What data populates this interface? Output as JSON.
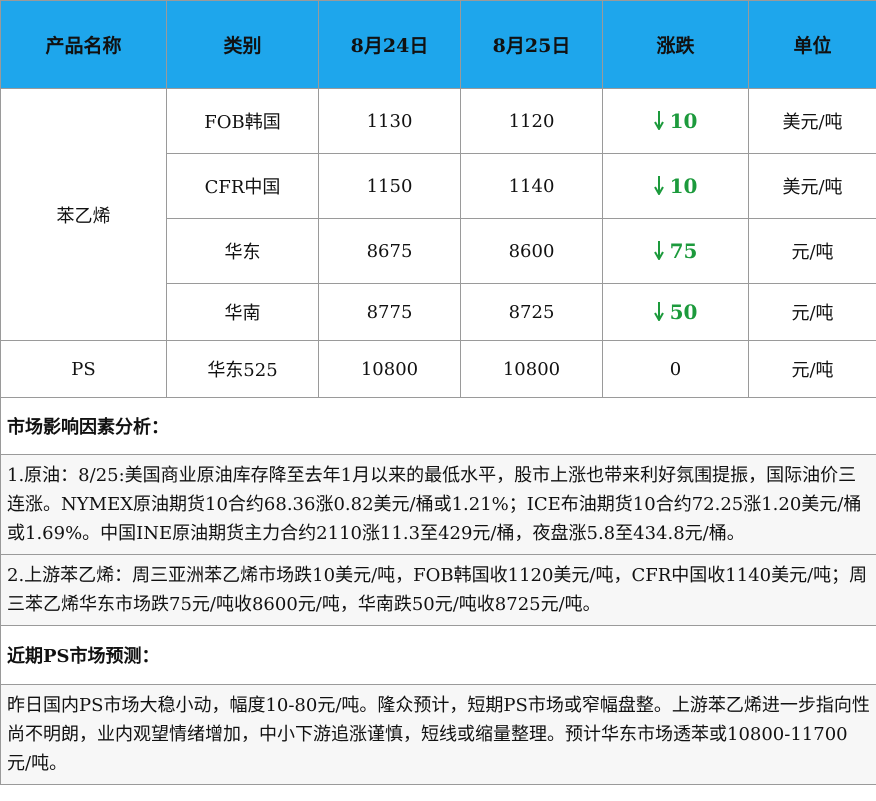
{
  "table": {
    "header": [
      "产品名称",
      "类别",
      "8月24日",
      "8月25日",
      "涨跌",
      "单位"
    ],
    "groups": [
      {
        "product": "苯乙烯",
        "rows": [
          [
            "FOB韩国",
            "1130",
            "1120",
            "10",
            "美元/吨"
          ],
          [
            "CFR中国",
            "1150",
            "1140",
            "10",
            "美元/吨"
          ],
          [
            "华东",
            "8675",
            "8600",
            "75",
            "元/吨"
          ],
          [
            "华南",
            "8775",
            "8725",
            "50",
            "元/吨"
          ]
        ]
      },
      {
        "product": "PS",
        "rows": [
          [
            "华东525",
            "10800",
            "10800",
            "0",
            "元/吨"
          ]
        ]
      }
    ]
  },
  "sections": [
    {
      "title": "市场影响因素分析：",
      "paragraphs": [
        "1.原油：8/25:美国商业原油库存降至去年1月以来的最低水平，股市上涨也带来利好氛围提振，国际油价三连涨。NYMEX原油期货10合约68.36涨0.82美元/桶或1.21%；ICE布油期货10合约72.25涨1.20美元/桶或1.69%。中国INE原油期货主力合约2110涨11.3至429元/桶，夜盘涨5.8至434.8元/桶。",
        "2.上游苯乙烯：周三亚洲苯乙烯市场跌10美元/吨，FOB韩国收1120美元/吨，CFR中国收1140美元/吨；周三苯乙烯华东市场跌75元/吨收8600元/吨，华南跌50元/吨收8725元/吨。"
      ]
    },
    {
      "title": "近期PS市场预测：",
      "paragraphs": [
        "昨日国内PS市场大稳小动，幅度10-80元/吨。隆众预计，短期PS市场或窄幅盘整。上游苯乙烯进一步指向性尚不明朗，业内观望情绪增加，中小下游追涨谨慎，短线或缩量整理。预计华东市场透苯或10800-11700元/吨。"
      ]
    }
  ]
}
